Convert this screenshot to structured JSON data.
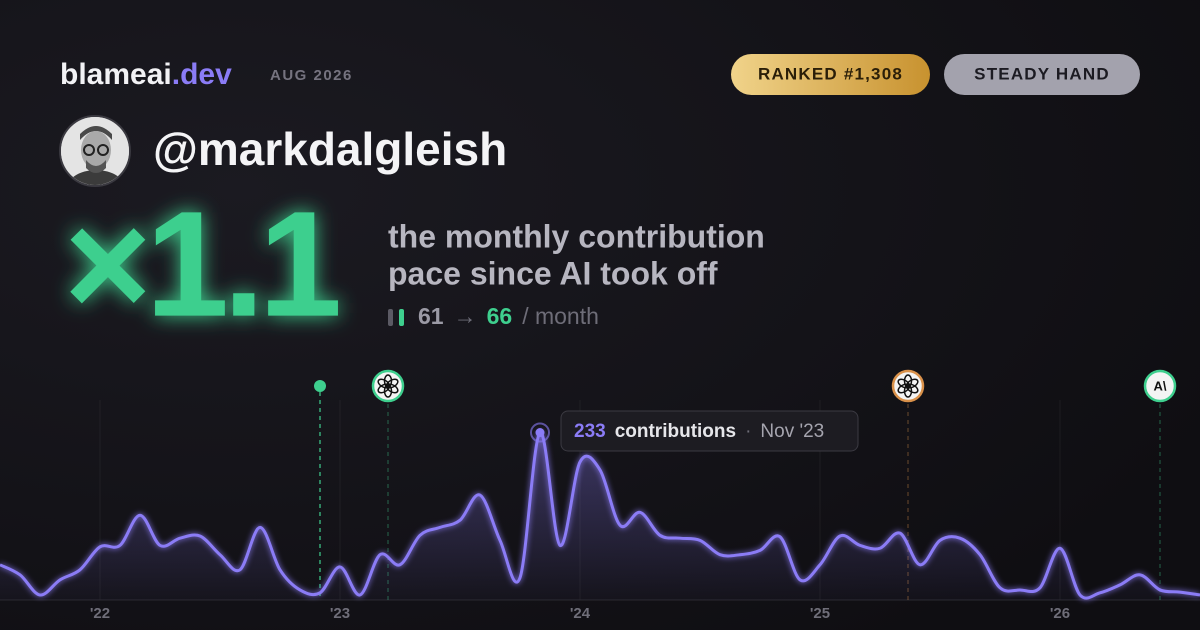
{
  "header": {
    "brand": "blameai",
    "brand_tld": ".dev",
    "period": "AUG 2026",
    "badges": [
      "RANKED #1,308",
      "STEADY HAND"
    ],
    "handle": "@markdalgleish"
  },
  "stats": {
    "multiplier": "×1.1",
    "description": [
      "the monthly contribution",
      "pace since AI took off"
    ],
    "before": 61,
    "arrow": "→",
    "after": 66,
    "unit": "/ month"
  },
  "chart_data": {
    "type": "line",
    "color": "#8b7cf6",
    "x": [
      0,
      1,
      2,
      3,
      4,
      5,
      6,
      7,
      8,
      9,
      10,
      11,
      12,
      13,
      14,
      15,
      16,
      17,
      18,
      19,
      20,
      21,
      22,
      23,
      24,
      25,
      26,
      27,
      28,
      29,
      30,
      31,
      32,
      33,
      34,
      35,
      36,
      37,
      38,
      39,
      40,
      41,
      42,
      43,
      44,
      45,
      46,
      47,
      48,
      49,
      50,
      51,
      52,
      53,
      54,
      55,
      56,
      57,
      58,
      59,
      60
    ],
    "values": [
      49,
      35,
      7,
      28,
      42,
      74,
      76,
      118,
      76,
      86,
      89,
      63,
      42,
      101,
      42,
      14,
      10,
      46,
      7,
      63,
      49,
      90,
      101,
      111,
      146,
      83,
      31,
      233,
      76,
      192,
      181,
      104,
      122,
      90,
      86,
      83,
      63,
      63,
      69,
      88,
      28,
      49,
      89,
      76,
      72,
      93,
      49,
      83,
      86,
      63,
      17,
      14,
      17,
      72,
      7,
      10,
      21,
      35,
      14,
      11,
      7
    ],
    "xlim": [
      0,
      60
    ],
    "ylim": [
      0,
      320
    ],
    "xticks": [
      {
        "value": 5,
        "label": "'22"
      },
      {
        "value": 17,
        "label": "'23"
      },
      {
        "value": 29,
        "label": "'24"
      },
      {
        "value": 41,
        "label": "'25"
      },
      {
        "value": 53,
        "label": "'26"
      }
    ],
    "grid": true,
    "events": [
      {
        "x": 16,
        "color": "#3ecf8e"
      },
      {
        "x": 19.4,
        "color": "#3ecf8e"
      },
      {
        "x": 45.4,
        "color": "#d9914a"
      },
      {
        "x": 58,
        "color": "#3ecf8e"
      }
    ],
    "tooltip": {
      "index": 27,
      "label": "contributions",
      "date": "Nov '23"
    }
  }
}
